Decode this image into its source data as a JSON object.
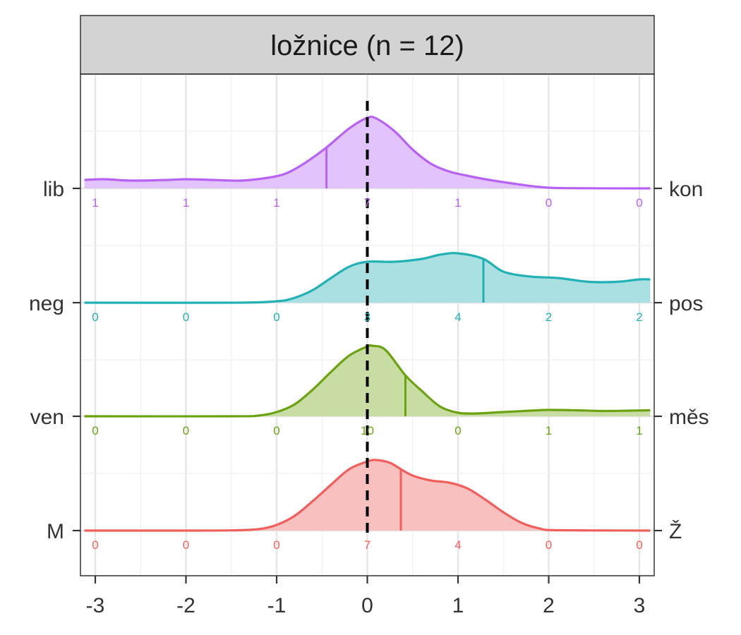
{
  "chart_data": {
    "type": "area",
    "title": "ložnice (n = 12)",
    "xlabel": "",
    "ylabel": "",
    "xlim": [
      -3.12,
      3.12
    ],
    "x_ticks": [
      "-3",
      "-2",
      "-1",
      "0",
      "1",
      "2",
      "3"
    ],
    "x_tick_values": [
      -3,
      -2,
      -1,
      0,
      1,
      2,
      3
    ],
    "reference_line_x": 0,
    "grid": true,
    "categories_x": [
      -3,
      -2,
      -1,
      0,
      1,
      2,
      3
    ],
    "series": [
      {
        "left_label": "M",
        "right_label": "Ž",
        "color": "#F15F5C",
        "fill": "#F8BDBB",
        "marker_x": 0.37,
        "counts": [
          "0",
          "0",
          "0",
          "7",
          "4",
          "0",
          "0"
        ],
        "density": [
          [
            -3.12,
            0
          ],
          [
            -2.0,
            0
          ],
          [
            -1.5,
            0.003
          ],
          [
            -1.2,
            0.02
          ],
          [
            -1.0,
            0.08
          ],
          [
            -0.8,
            0.21
          ],
          [
            -0.6,
            0.42
          ],
          [
            -0.4,
            0.65
          ],
          [
            -0.2,
            0.87
          ],
          [
            0.0,
            0.98
          ],
          [
            0.1,
            1.0
          ],
          [
            0.25,
            0.96
          ],
          [
            0.37,
            0.87
          ],
          [
            0.5,
            0.78
          ],
          [
            0.7,
            0.71
          ],
          [
            0.9,
            0.68
          ],
          [
            1.1,
            0.6
          ],
          [
            1.3,
            0.44
          ],
          [
            1.5,
            0.26
          ],
          [
            1.7,
            0.11
          ],
          [
            1.9,
            0.03
          ],
          [
            2.1,
            0.005
          ],
          [
            3.12,
            0
          ]
        ]
      },
      {
        "left_label": "ven",
        "right_label": "měs",
        "color": "#6BA20F",
        "fill": "#C5DB9F",
        "marker_x": 0.42,
        "counts": [
          "0",
          "0",
          "0",
          "10",
          "0",
          "1",
          "1"
        ],
        "density": [
          [
            -3.12,
            0
          ],
          [
            -1.5,
            0
          ],
          [
            -1.2,
            0.01
          ],
          [
            -1.0,
            0.06
          ],
          [
            -0.8,
            0.17
          ],
          [
            -0.6,
            0.38
          ],
          [
            -0.4,
            0.63
          ],
          [
            -0.2,
            0.86
          ],
          [
            0.0,
            0.99
          ],
          [
            0.05,
            1.0
          ],
          [
            0.2,
            0.94
          ],
          [
            0.42,
            0.58
          ],
          [
            0.6,
            0.36
          ],
          [
            0.8,
            0.14
          ],
          [
            1.0,
            0.05
          ],
          [
            1.2,
            0.04
          ],
          [
            1.5,
            0.06
          ],
          [
            1.8,
            0.08
          ],
          [
            2.0,
            0.09
          ],
          [
            2.3,
            0.085
          ],
          [
            2.6,
            0.075
          ],
          [
            2.9,
            0.08
          ],
          [
            3.12,
            0.085
          ]
        ]
      },
      {
        "left_label": "neg",
        "right_label": "pos",
        "color": "#21B1B4",
        "fill": "#A5DEE0",
        "marker_x": 1.28,
        "counts": [
          "0",
          "0",
          "0",
          "3",
          "4",
          "2",
          "2"
        ],
        "density": [
          [
            -3.12,
            0
          ],
          [
            -1.5,
            0
          ],
          [
            -1.0,
            0.02
          ],
          [
            -0.8,
            0.07
          ],
          [
            -0.6,
            0.18
          ],
          [
            -0.4,
            0.35
          ],
          [
            -0.2,
            0.51
          ],
          [
            0.0,
            0.58
          ],
          [
            0.3,
            0.58
          ],
          [
            0.6,
            0.62
          ],
          [
            0.8,
            0.68
          ],
          [
            1.0,
            0.7
          ],
          [
            1.28,
            0.62
          ],
          [
            1.5,
            0.44
          ],
          [
            1.8,
            0.37
          ],
          [
            2.1,
            0.35
          ],
          [
            2.4,
            0.3
          ],
          [
            2.6,
            0.29
          ],
          [
            2.8,
            0.3
          ],
          [
            3.0,
            0.33
          ],
          [
            3.12,
            0.33
          ]
        ]
      },
      {
        "left_label": "lib",
        "right_label": "kon",
        "color": "#B761F5",
        "fill": "#E2C0FC",
        "marker_x": -0.45,
        "counts": [
          "1",
          "1",
          "1",
          "7",
          "1",
          "0",
          "0"
        ],
        "density": [
          [
            -3.12,
            0.12
          ],
          [
            -2.9,
            0.13
          ],
          [
            -2.6,
            0.11
          ],
          [
            -2.2,
            0.12
          ],
          [
            -2.0,
            0.13
          ],
          [
            -1.7,
            0.12
          ],
          [
            -1.4,
            0.11
          ],
          [
            -1.1,
            0.15
          ],
          [
            -0.9,
            0.21
          ],
          [
            -0.7,
            0.35
          ],
          [
            -0.45,
            0.58
          ],
          [
            -0.2,
            0.85
          ],
          [
            0.0,
            1.0
          ],
          [
            0.1,
            0.99
          ],
          [
            0.3,
            0.81
          ],
          [
            0.5,
            0.55
          ],
          [
            0.7,
            0.35
          ],
          [
            0.9,
            0.24
          ],
          [
            1.1,
            0.18
          ],
          [
            1.3,
            0.13
          ],
          [
            1.6,
            0.07
          ],
          [
            1.9,
            0.02
          ],
          [
            2.2,
            0.003
          ],
          [
            3.12,
            0
          ]
        ]
      }
    ]
  }
}
